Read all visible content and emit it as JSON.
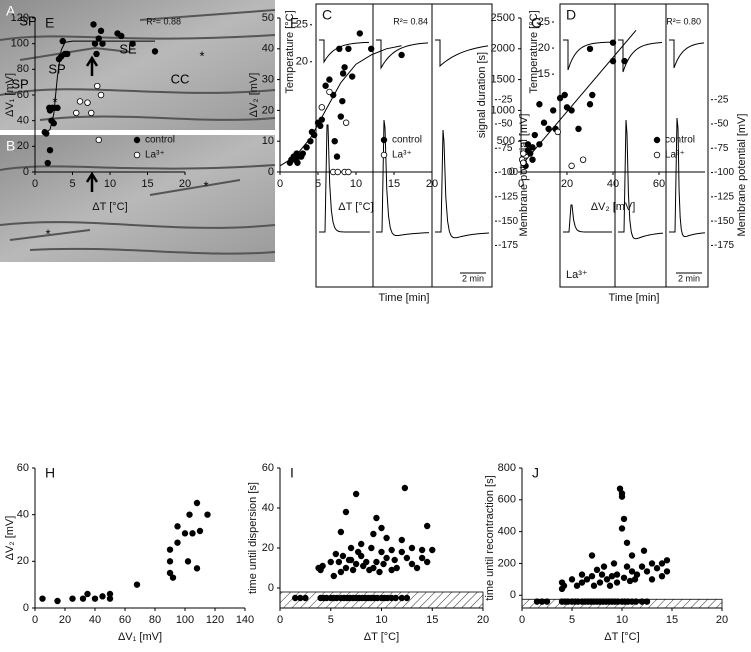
{
  "micrographs": [
    {
      "label": "A",
      "annotations": [
        "SP",
        "SE",
        "SP",
        "SP",
        "*",
        "CC",
        "*"
      ]
    },
    {
      "label": "B",
      "annotations": [
        "*",
        "*"
      ]
    }
  ],
  "chart_data": [
    {
      "type": "trace",
      "label": "C",
      "ylabel": "Temperature [°C]",
      "y2label": "Membrane potential [mV]",
      "xlabel": "Time [min]",
      "scale_label": "2 min",
      "ylim": [
        15.5,
        27
      ],
      "yticks": [
        20,
        25
      ],
      "y2lim": [
        -190,
        -15
      ],
      "y2ticks": [
        -25,
        -50,
        -75,
        -100,
        -125,
        -150,
        -175
      ]
    },
    {
      "type": "trace",
      "label": "D",
      "ylabel": "Temperature [°C]",
      "y2label": "Membrane potential [mV]",
      "xlabel": "Time [min]",
      "scale_label": "2 min",
      "annotation": "La³⁺",
      "ylim": [
        11,
        27.3
      ],
      "yticks": [
        15,
        20,
        25
      ],
      "y2lim": [
        -190,
        -15
      ],
      "y2ticks": [
        -25,
        -50,
        -75,
        -100,
        -125,
        -150,
        -175
      ]
    },
    {
      "type": "scatter",
      "label": "E",
      "xlabel": "ΔT [°C]",
      "ylabel": "ΔV₁ [mV]",
      "annotation": "R²= 0.88",
      "legend": "lower right",
      "xlim": [
        0,
        20
      ],
      "xticks": [
        0,
        5,
        10,
        15,
        20
      ],
      "ylim": [
        0,
        120
      ],
      "yticks": [
        0,
        20,
        40,
        60,
        80,
        100,
        120
      ],
      "fit_line": {
        "x": [
          1,
          2,
          2.5,
          3,
          3.5,
          4,
          5,
          16
        ],
        "values": [
          30,
          33,
          45,
          75,
          95,
          101,
          102,
          102
        ]
      },
      "series": [
        {
          "name": "control",
          "color": "#000000",
          "x": [
            1.3,
            1.5,
            1.7,
            1.9,
            2.0,
            2.0,
            2.2,
            2.3,
            2.5,
            2.6,
            3.0,
            3.2,
            3.5,
            3.7,
            4.0,
            4.3,
            7.8,
            8.0,
            8.2,
            8.5,
            8.8,
            9.0,
            11.0,
            11.5,
            13.0,
            16.0
          ],
          "values": [
            31,
            30,
            7,
            50,
            17,
            48,
            40,
            50,
            38,
            50,
            50,
            88,
            90,
            102,
            92,
            92,
            115,
            100,
            92,
            104,
            110,
            100,
            108,
            106,
            100,
            94
          ]
        },
        {
          "name": "La³⁺",
          "color": "#ffffff",
          "x": [
            5.5,
            6.0,
            7.0,
            7.5,
            8.3,
            8.5,
            8.8
          ],
          "values": [
            46,
            55,
            54,
            46,
            67,
            25,
            60
          ]
        }
      ]
    },
    {
      "type": "scatter",
      "label": "F",
      "xlabel": "ΔT [°C]",
      "ylabel": "ΔV₂ [mV]",
      "annotation": "R²= 0.84",
      "legend": "lower right",
      "xlim": [
        0,
        20
      ],
      "xticks": [
        0,
        5,
        10,
        15,
        20
      ],
      "ylim": [
        0,
        50
      ],
      "yticks": [
        0,
        10,
        20,
        30,
        40,
        50
      ],
      "fit_line": {
        "x": [
          0,
          2,
          4,
          6,
          8,
          10,
          12,
          14,
          16
        ],
        "values": [
          2,
          5,
          11,
          20,
          29,
          35,
          38,
          40,
          41
        ]
      },
      "series": [
        {
          "name": "control",
          "color": "#000000",
          "x": [
            1.3,
            1.5,
            1.8,
            2.0,
            2.2,
            2.3,
            2.5,
            2.8,
            3.0,
            3.5,
            4.0,
            4.2,
            4.5,
            5.0,
            5.3,
            5.5,
            6.0,
            6.5,
            7.0,
            7.2,
            7.5,
            7.8,
            8.0,
            8.2,
            8.3,
            8.5,
            9.0,
            9.5,
            10.5,
            12.0,
            16.0
          ],
          "values": [
            3,
            4,
            5,
            4,
            6,
            3,
            5,
            5,
            6,
            8,
            10,
            13,
            12,
            16,
            15,
            17,
            28,
            30,
            25,
            10,
            5,
            40,
            18,
            23,
            32,
            34,
            40,
            31,
            45,
            40,
            38
          ]
        },
        {
          "name": "La³⁺",
          "color": "#ffffff",
          "x": [
            5.5,
            6.5,
            7.0,
            7.6,
            8.5,
            8.7,
            9.0
          ],
          "values": [
            21,
            26,
            0,
            0,
            0,
            16,
            0
          ]
        }
      ]
    },
    {
      "type": "scatter",
      "label": "G",
      "xlabel": "ΔV₂ [mV]",
      "ylabel": "signal duration [s]",
      "annotation": "R²= 0.80",
      "legend": "lower right",
      "xlim": [
        0,
        80
      ],
      "xticks": [
        0,
        20,
        40,
        60
      ],
      "ylim": [
        0,
        2500
      ],
      "yticks": [
        0,
        500,
        1000,
        1500,
        2000,
        2500
      ],
      "fit_line": {
        "x": [
          0,
          50
        ],
        "values": [
          100,
          2300
        ]
      },
      "series": [
        {
          "name": "control",
          "color": "#000000",
          "x": [
            1,
            2,
            3,
            3,
            4,
            5,
            5,
            6,
            8,
            8,
            10,
            12,
            14,
            15,
            17,
            19,
            20,
            22,
            25,
            30,
            30,
            31,
            40,
            40,
            45
          ],
          "values": [
            150,
            100,
            350,
            450,
            300,
            400,
            200,
            600,
            1100,
            450,
            800,
            700,
            1000,
            700,
            1200,
            1250,
            1050,
            1000,
            700,
            2000,
            1100,
            1250,
            1800,
            2100,
            1800
          ]
        },
        {
          "name": "La³⁺",
          "color": "#ffffff",
          "x": [
            0.5,
            1,
            1,
            16,
            22,
            27
          ],
          "values": [
            200,
            300,
            150,
            650,
            100,
            200
          ]
        }
      ]
    },
    {
      "type": "scatter",
      "label": "H",
      "xlabel": "ΔV₁ [mV]",
      "ylabel": "ΔV₂ [mV]",
      "xlim": [
        0,
        140
      ],
      "xticks": [
        0,
        20,
        40,
        60,
        80,
        100,
        120,
        140
      ],
      "ylim": [
        0,
        60
      ],
      "yticks": [
        0,
        20,
        40,
        60
      ],
      "series": [
        {
          "color": "#000000",
          "x": [
            5,
            15,
            25,
            32,
            35,
            40,
            45,
            50,
            50,
            68,
            90,
            90,
            90,
            92,
            95,
            95,
            100,
            102,
            103,
            105,
            108,
            108,
            110,
            115
          ],
          "values": [
            4,
            3,
            4,
            4,
            6,
            4,
            5,
            4,
            6,
            10,
            15,
            20,
            25,
            13,
            35,
            28,
            32,
            20,
            40,
            32,
            45,
            17,
            33,
            40
          ]
        }
      ]
    },
    {
      "type": "scatter",
      "label": "I",
      "xlabel": "ΔT [°C]",
      "ylabel": "time until dispersion [s]",
      "hatch": true,
      "xlim": [
        0,
        20
      ],
      "xticks": [
        0,
        5,
        10,
        15,
        20
      ],
      "ylim": [
        -10,
        60
      ],
      "yticks": [
        0,
        20,
        40,
        60
      ],
      "series": [
        {
          "color": "#000000",
          "x": [
            3.8,
            4,
            4.2,
            5,
            5.3,
            5.5,
            5.8,
            6,
            6,
            6.2,
            6.5,
            6.5,
            6.8,
            7,
            7,
            7.2,
            7.5,
            7.5,
            7.7,
            8,
            8,
            8.2,
            8.5,
            8.8,
            9,
            9.2,
            9.2,
            9.5,
            9.5,
            9.8,
            10,
            10,
            10.2,
            10.5,
            10.5,
            11,
            11,
            11.3,
            11.5,
            12,
            12,
            12.3,
            12.5,
            13,
            13,
            13.5,
            14,
            14,
            14.5,
            14.5,
            15,
            1.5,
            2,
            2.5,
            4,
            4.3,
            4.6,
            5,
            5.3,
            5.6,
            6,
            6.3,
            6.6,
            6.9,
            7.2,
            7.5,
            7.8,
            8.1,
            8.4,
            8.7,
            9,
            9.3,
            9.6,
            10,
            10.3,
            10.6,
            11,
            11.4,
            12,
            12.5
          ],
          "values": [
            10,
            9,
            11,
            13,
            6,
            17,
            13,
            28,
            8,
            16,
            38,
            10,
            14,
            20,
            14,
            9,
            47,
            12,
            18,
            16,
            22,
            11,
            13,
            9,
            20,
            27,
            10,
            35,
            13,
            8,
            30,
            18,
            12,
            25,
            15,
            9,
            19,
            14,
            10,
            24,
            18,
            50,
            15,
            12,
            20,
            10,
            19,
            15,
            31,
            13,
            19,
            -5,
            -5,
            -5,
            -5,
            -5,
            -5,
            -5,
            -5,
            -5,
            -5,
            -5,
            -5,
            -5,
            -5,
            -5,
            -5,
            -5,
            -5,
            -5,
            -5,
            -5,
            -5,
            -5,
            -5,
            -5,
            -5,
            -5,
            -5,
            -5
          ]
        }
      ]
    },
    {
      "type": "scatter",
      "label": "J",
      "xlabel": "ΔT [°C]",
      "ylabel": "time until recontraction [s]",
      "hatch": true,
      "xlim": [
        0,
        20
      ],
      "xticks": [
        0,
        5,
        10,
        15,
        20
      ],
      "ylim": [
        -80,
        800
      ],
      "yticks": [
        0,
        200,
        400,
        600,
        800
      ],
      "series": [
        {
          "color": "#000000",
          "x": [
            4,
            4,
            4.2,
            5,
            5.5,
            6,
            6,
            6.5,
            7,
            7,
            7.2,
            7.5,
            7.8,
            8,
            8.2,
            8.5,
            8.8,
            9,
            9.2,
            9.5,
            9.5,
            9.8,
            10,
            10,
            10,
            10.2,
            10.2,
            10.5,
            10.5,
            10.8,
            11,
            11,
            11.3,
            11.5,
            12,
            12.2,
            12.5,
            13,
            13,
            13.5,
            14,
            14,
            14.5,
            14.5,
            1.5,
            2,
            2.5,
            4,
            4.3,
            4.6,
            5,
            5.3,
            5.6,
            6,
            6.3,
            6.6,
            6.9,
            7.2,
            7.5,
            7.8,
            8.1,
            8.4,
            8.7,
            9,
            9.3,
            9.6,
            10,
            10.3,
            10.6,
            11,
            11.4,
            12,
            12.5
          ],
          "values": [
            80,
            40,
            60,
            100,
            60,
            130,
            80,
            100,
            120,
            250,
            60,
            160,
            80,
            130,
            180,
            100,
            60,
            120,
            200,
            130,
            80,
            670,
            620,
            640,
            420,
            480,
            110,
            330,
            180,
            90,
            250,
            150,
            100,
            130,
            180,
            280,
            150,
            200,
            100,
            170,
            120,
            200,
            220,
            150,
            -40,
            -40,
            -40,
            -40,
            -40,
            -40,
            -40,
            -40,
            -40,
            -40,
            -40,
            -40,
            -40,
            -40,
            -40,
            -40,
            -40,
            -40,
            -40,
            -40,
            -40,
            -40,
            -40,
            -40,
            -40,
            -40,
            -40,
            -40,
            -40
          ]
        }
      ]
    }
  ]
}
